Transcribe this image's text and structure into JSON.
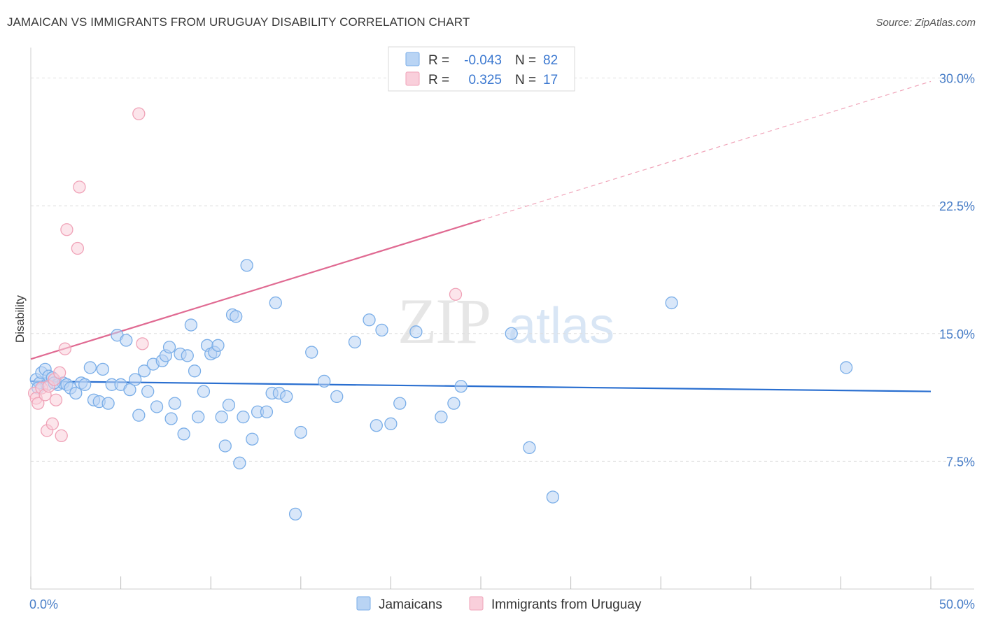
{
  "title": "JAMAICAN VS IMMIGRANTS FROM URUGUAY DISABILITY CORRELATION CHART",
  "source": "Source: ZipAtlas.com",
  "watermark": {
    "zip": "ZIP",
    "atlas": "atlas"
  },
  "chart_data": {
    "type": "scatter",
    "ylabel": "Disability",
    "xlim": [
      0,
      50
    ],
    "ylim": [
      0,
      31.5
    ],
    "x_tick_labels": [
      {
        "value": 0,
        "label": "0.0%"
      },
      {
        "value": 50,
        "label": "50.0%"
      }
    ],
    "y_tick_labels": [
      {
        "value": 7.5,
        "label": "7.5%"
      },
      {
        "value": 15.0,
        "label": "15.0%"
      },
      {
        "value": 22.5,
        "label": "22.5%"
      },
      {
        "value": 30.0,
        "label": "30.0%"
      }
    ],
    "grid": true,
    "legend_position": "top-center",
    "series": [
      {
        "name": "Jamaicans",
        "color": "#7aaee8",
        "fill": "#b9d4f4",
        "R": "-0.043",
        "N": "82",
        "trend": {
          "x": [
            0,
            50
          ],
          "y": [
            12.2,
            11.6
          ],
          "color": "#2a6fd0"
        },
        "points": [
          [
            0.3,
            12.3
          ],
          [
            0.5,
            12.1
          ],
          [
            0.6,
            12.7
          ],
          [
            0.8,
            12.9
          ],
          [
            0.9,
            12.0
          ],
          [
            1.0,
            12.5
          ],
          [
            1.2,
            12.4
          ],
          [
            1.5,
            12.0
          ],
          [
            1.8,
            12.1
          ],
          [
            2.0,
            12.0
          ],
          [
            2.2,
            11.8
          ],
          [
            2.5,
            11.5
          ],
          [
            2.8,
            12.1
          ],
          [
            3.0,
            12.0
          ],
          [
            3.3,
            13.0
          ],
          [
            3.5,
            11.1
          ],
          [
            3.8,
            11.0
          ],
          [
            4.0,
            12.9
          ],
          [
            4.3,
            10.9
          ],
          [
            4.5,
            12.0
          ],
          [
            4.8,
            14.9
          ],
          [
            5.0,
            12.0
          ],
          [
            5.3,
            14.6
          ],
          [
            5.5,
            11.7
          ],
          [
            5.8,
            12.3
          ],
          [
            6.0,
            10.2
          ],
          [
            6.3,
            12.8
          ],
          [
            6.5,
            11.6
          ],
          [
            6.8,
            13.2
          ],
          [
            7.0,
            10.7
          ],
          [
            7.3,
            13.4
          ],
          [
            7.5,
            13.7
          ],
          [
            7.7,
            14.2
          ],
          [
            7.8,
            10.0
          ],
          [
            8.0,
            10.9
          ],
          [
            8.3,
            13.8
          ],
          [
            8.5,
            9.1
          ],
          [
            8.7,
            13.7
          ],
          [
            8.9,
            15.5
          ],
          [
            9.1,
            12.8
          ],
          [
            9.3,
            10.1
          ],
          [
            9.6,
            11.6
          ],
          [
            9.8,
            14.3
          ],
          [
            10.0,
            13.8
          ],
          [
            10.2,
            13.9
          ],
          [
            10.4,
            14.3
          ],
          [
            10.6,
            10.1
          ],
          [
            10.8,
            8.4
          ],
          [
            11.0,
            10.8
          ],
          [
            11.2,
            16.1
          ],
          [
            11.4,
            16.0
          ],
          [
            11.6,
            7.4
          ],
          [
            11.8,
            10.1
          ],
          [
            12.3,
            8.8
          ],
          [
            12.6,
            10.4
          ],
          [
            13.1,
            10.4
          ],
          [
            13.4,
            11.5
          ],
          [
            13.6,
            16.8
          ],
          [
            13.8,
            11.5
          ],
          [
            14.2,
            11.3
          ],
          [
            14.7,
            4.4
          ],
          [
            15.0,
            9.2
          ],
          [
            15.6,
            13.9
          ],
          [
            16.3,
            12.2
          ],
          [
            17.0,
            11.3
          ],
          [
            18.0,
            14.5
          ],
          [
            18.8,
            15.8
          ],
          [
            19.2,
            9.6
          ],
          [
            19.5,
            15.2
          ],
          [
            20.0,
            9.7
          ],
          [
            20.5,
            10.9
          ],
          [
            21.4,
            15.1
          ],
          [
            22.8,
            10.1
          ],
          [
            23.5,
            10.9
          ],
          [
            23.9,
            11.9
          ],
          [
            26.7,
            15.0
          ],
          [
            27.7,
            8.3
          ],
          [
            29.0,
            5.4
          ],
          [
            35.6,
            16.8
          ],
          [
            45.3,
            13.0
          ],
          [
            0.4,
            11.8
          ],
          [
            1.3,
            12.1
          ],
          [
            12.0,
            19.0
          ]
        ]
      },
      {
        "name": "Immigrants from Uruguay",
        "color": "#f0a3b8",
        "fill": "#f9cfdb",
        "R": "0.325",
        "N": "17",
        "trend": {
          "x": [
            0,
            50
          ],
          "y": [
            13.5,
            29.8
          ],
          "solid_until": 25,
          "color": "#e06a92"
        },
        "points": [
          [
            0.2,
            11.5
          ],
          [
            0.3,
            11.2
          ],
          [
            0.4,
            10.9
          ],
          [
            0.6,
            11.8
          ],
          [
            0.8,
            11.4
          ],
          [
            0.9,
            9.3
          ],
          [
            1.0,
            11.9
          ],
          [
            1.2,
            9.7
          ],
          [
            1.3,
            12.3
          ],
          [
            1.4,
            11.1
          ],
          [
            1.6,
            12.7
          ],
          [
            1.7,
            9.0
          ],
          [
            1.9,
            14.1
          ],
          [
            2.0,
            21.1
          ],
          [
            2.6,
            20.0
          ],
          [
            2.7,
            23.6
          ],
          [
            6.0,
            27.9
          ],
          [
            6.2,
            14.4
          ],
          [
            23.6,
            17.3
          ]
        ]
      }
    ]
  }
}
